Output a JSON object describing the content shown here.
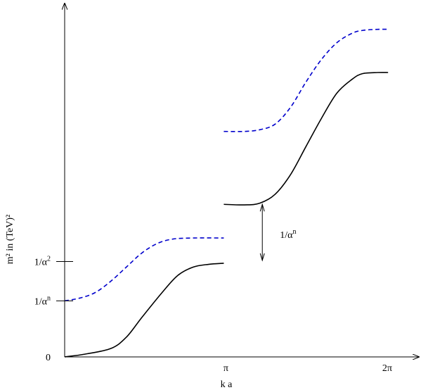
{
  "chart_data": {
    "type": "line",
    "xlabel": "k a",
    "ylabel": "m² in (TeV)²",
    "x_ticks": [
      {
        "value": 3.14159,
        "label": "π"
      },
      {
        "value": 6.28318,
        "label": "2π"
      }
    ],
    "y_ticks": [
      {
        "value": 0,
        "label": "0"
      },
      {
        "value": 1.0,
        "label": "1/α",
        "sup": "n"
      },
      {
        "value": 1.7,
        "label": "1/α",
        "sup": "2"
      }
    ],
    "xlim": [
      0,
      6.9
    ],
    "ylim": [
      0,
      6.3
    ],
    "grid": false,
    "series": [
      {
        "color": "#000000",
        "dash": "solid",
        "x": [
          0,
          0.4,
          0.9,
          1.2,
          1.5,
          1.9,
          2.2,
          2.5,
          2.8,
          3.1
        ],
        "y": [
          0.0,
          0.05,
          0.15,
          0.35,
          0.7,
          1.15,
          1.45,
          1.6,
          1.65,
          1.67
        ]
      },
      {
        "color": "#0000cc",
        "dash": "dashed",
        "x": [
          0,
          0.3,
          0.6,
          0.9,
          1.2,
          1.5,
          1.8,
          2.1,
          2.5,
          3.1
        ],
        "y": [
          1.0,
          1.05,
          1.15,
          1.35,
          1.6,
          1.85,
          2.02,
          2.1,
          2.12,
          2.12
        ]
      },
      {
        "color": "#000000",
        "dash": "solid",
        "x": [
          3.1,
          3.5,
          3.8,
          4.1,
          4.4,
          4.7,
          5.0,
          5.3,
          5.6,
          5.8,
          6.1,
          6.3
        ],
        "y": [
          2.72,
          2.71,
          2.74,
          2.9,
          3.25,
          3.75,
          4.25,
          4.7,
          4.95,
          5.05,
          5.07,
          5.07
        ]
      },
      {
        "color": "#0000cc",
        "dash": "dashed",
        "x": [
          3.1,
          3.5,
          3.8,
          4.1,
          4.4,
          4.7,
          5.0,
          5.3,
          5.6,
          5.8,
          6.1,
          6.3
        ],
        "y": [
          4.02,
          4.02,
          4.05,
          4.15,
          4.45,
          4.9,
          5.3,
          5.6,
          5.77,
          5.82,
          5.84,
          5.84
        ]
      }
    ],
    "annotation": {
      "text": "1/α",
      "sup": "n",
      "x": 3.85,
      "y_from": 2.72,
      "y_to": 1.72
    }
  }
}
